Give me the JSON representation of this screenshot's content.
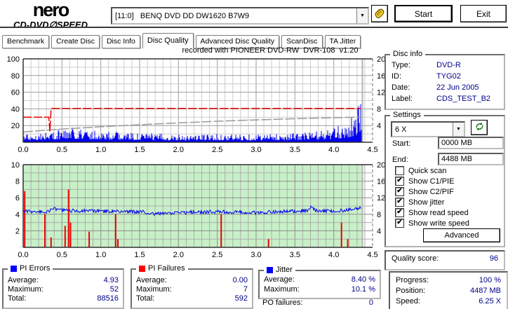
{
  "window": {
    "logo_title": "nero",
    "logo_subtitle": "CD-DVD∅SPEED",
    "drive_selector": "[11:0]   BENQ DVD DD DW1620 B7W9",
    "start_button": "Start",
    "exit_button": "Exit"
  },
  "tabs": [
    {
      "label": "Benchmark",
      "active": false
    },
    {
      "label": "Create Disc",
      "active": false
    },
    {
      "label": "Disc Info",
      "active": false
    },
    {
      "label": "Disc Quality",
      "active": true
    },
    {
      "label": "Advanced Disc Quality",
      "active": false
    },
    {
      "label": "ScanDisc",
      "active": false
    },
    {
      "label": "TA Jitter",
      "active": false
    }
  ],
  "disc_info": {
    "title": "Disc info",
    "rows": [
      {
        "label": "Type:",
        "value": "DVD-R"
      },
      {
        "label": "ID:",
        "value": "TYG02"
      },
      {
        "label": "Date:",
        "value": "22 Jun 2005"
      },
      {
        "label": "Label:",
        "value": "CDS_TEST_B2"
      }
    ]
  },
  "settings": {
    "title": "Settings",
    "speed_value": "6 X",
    "start_label": "Start:",
    "start_value": "0000 MB",
    "end_label": "End:",
    "end_value": "4488 MB",
    "checkboxes": [
      {
        "label": "Quick scan",
        "checked": false
      },
      {
        "label": "Show C1/PIE",
        "checked": true
      },
      {
        "label": "Show C2/PIF",
        "checked": true
      },
      {
        "label": "Show jitter",
        "checked": true
      },
      {
        "label": "Show read speed",
        "checked": true
      },
      {
        "label": "Show write speed",
        "checked": true
      }
    ],
    "advanced_button": "Advanced"
  },
  "quality_score": {
    "label": "Quality score:",
    "value": "96"
  },
  "stats": {
    "pi_errors": {
      "title": "PI Errors",
      "color": "#0000ff",
      "rows": [
        {
          "label": "Average:",
          "value": "4.93"
        },
        {
          "label": "Maximum:",
          "value": "52"
        },
        {
          "label": "Total:",
          "value": "88516"
        }
      ]
    },
    "pi_failures": {
      "title": "PI Failures",
      "color": "#ff0000",
      "rows": [
        {
          "label": "Average:",
          "value": "0.00"
        },
        {
          "label": "Maximum:",
          "value": "7"
        },
        {
          "label": "Total:",
          "value": "592"
        }
      ]
    },
    "jitter": {
      "title": "Jitter",
      "color": "#0000ff",
      "rows": [
        {
          "label": "Average:",
          "value": "8.40 %"
        },
        {
          "label": "Maximum:",
          "value": "10.1 %"
        }
      ],
      "po_label": "PO failures:",
      "po_value": "0"
    },
    "progress": {
      "rows": [
        {
          "label": "Progress:",
          "value": "100 %"
        },
        {
          "label": "Position:",
          "value": "4487 MB"
        },
        {
          "label": "Speed:",
          "value": "6.25 X"
        }
      ]
    }
  },
  "chart_data": [
    {
      "type": "area",
      "title": "recorded with PIONEER DVD-RW  DVR-108  v1.20",
      "x_range": [
        0,
        4.5
      ],
      "x_ticks": [
        "0.0",
        "0.5",
        "1.0",
        "1.5",
        "2.0",
        "2.5",
        "3.0",
        "3.5",
        "4.0",
        "4.5"
      ],
      "y_left": {
        "range": [
          0,
          100
        ],
        "ticks": [
          20,
          40,
          60,
          80,
          100
        ],
        "minor_step": 10,
        "major_every": 20
      },
      "y_right": {
        "range": [
          0,
          20
        ],
        "ticks": [
          4,
          8,
          12,
          16,
          20
        ]
      },
      "data_end_x": 4.36,
      "grid": {
        "minor": "#cccccc",
        "major": "#9e9e9e"
      },
      "series": [
        {
          "name": "PI Errors",
          "render": "noise-bars",
          "color": "#0000ee",
          "seed": 987654,
          "envelope": [
            [
              0,
              10
            ],
            [
              0.2,
              12
            ],
            [
              0.35,
              13
            ],
            [
              0.5,
              17
            ],
            [
              0.7,
              18
            ],
            [
              0.9,
              15
            ],
            [
              1.1,
              14
            ],
            [
              1.3,
              12
            ],
            [
              1.6,
              11
            ],
            [
              2.0,
              10
            ],
            [
              2.4,
              10
            ],
            [
              2.8,
              10
            ],
            [
              3.2,
              10
            ],
            [
              3.5,
              11
            ],
            [
              3.8,
              14
            ],
            [
              4.0,
              17
            ],
            [
              4.1,
              21
            ],
            [
              4.2,
              28
            ],
            [
              4.28,
              36
            ],
            [
              4.33,
              48
            ],
            [
              4.36,
              52
            ]
          ]
        },
        {
          "name": "Write speed",
          "render": "line",
          "color": "#9a9a9a",
          "dash": "14 3",
          "units": "left-axis (x5 = speed X)",
          "points": [
            [
              0,
              12.4
            ],
            [
              0.5,
              15.8
            ],
            [
              1.0,
              18.6
            ],
            [
              1.5,
              21.0
            ],
            [
              2.0,
              23.2
            ],
            [
              2.5,
              25.2
            ],
            [
              3.0,
              26.8
            ],
            [
              3.5,
              28.2
            ],
            [
              4.0,
              29.4
            ],
            [
              4.36,
              30.2
            ]
          ]
        },
        {
          "name": "Read speed",
          "render": "line",
          "color": "#e80000",
          "dash": "12 3",
          "units": "left-axis (x5 = speed X)",
          "points": [
            [
              0,
              30
            ],
            [
              0.33,
              30
            ],
            [
              0.345,
              13
            ],
            [
              0.36,
              40.5
            ],
            [
              4.35,
              40.5
            ]
          ]
        }
      ]
    },
    {
      "type": "line",
      "title": "",
      "x_range": [
        0,
        4.5
      ],
      "x_ticks": [
        "0.0",
        "0.5",
        "1.0",
        "1.5",
        "2.0",
        "2.5",
        "3.0",
        "3.5",
        "4.0",
        "4.5"
      ],
      "y_left": {
        "range": [
          0,
          10
        ],
        "ticks": [
          2,
          4,
          6,
          8,
          10
        ],
        "minor_step": 1,
        "major_every": 2
      },
      "y_right": {
        "range": [
          0,
          20
        ],
        "ticks": [
          4,
          8,
          12,
          16,
          20
        ]
      },
      "data_end_x": 4.36,
      "bg_color": "#c8f0c8",
      "grid": {
        "minor": "#adadad",
        "major": "#8d8d8d"
      },
      "series": [
        {
          "name": "PI Failures",
          "render": "bars",
          "color": "#ee0000",
          "points": [
            [
              0.02,
              6.8
            ],
            [
              0.28,
              4
            ],
            [
              0.36,
              1.2
            ],
            [
              0.54,
              2.6
            ],
            [
              0.585,
              7
            ],
            [
              0.61,
              3
            ],
            [
              0.85,
              1.9
            ],
            [
              1.19,
              4
            ],
            [
              1.22,
              1
            ],
            [
              2.55,
              4
            ],
            [
              3.16,
              1
            ],
            [
              4.1,
              3
            ],
            [
              4.18,
              1
            ]
          ]
        },
        {
          "name": "Jitter",
          "render": "noise-line",
          "color": "#0000ee",
          "seed": 424242,
          "noise": 0.21,
          "baseline": [
            [
              0,
              4.35
            ],
            [
              0.3,
              4.3
            ],
            [
              0.4,
              4.65
            ],
            [
              0.55,
              4.45
            ],
            [
              0.8,
              4.4
            ],
            [
              1.2,
              4.35
            ],
            [
              1.55,
              4.3
            ],
            [
              1.7,
              4.05
            ],
            [
              1.9,
              4.1
            ],
            [
              2.2,
              4.25
            ],
            [
              2.6,
              4.3
            ],
            [
              3.0,
              4.2
            ],
            [
              3.3,
              4.3
            ],
            [
              3.68,
              4.45
            ],
            [
              3.72,
              5.0
            ],
            [
              3.76,
              4.4
            ],
            [
              4.0,
              4.4
            ],
            [
              4.2,
              4.5
            ],
            [
              4.36,
              4.8
            ]
          ]
        }
      ]
    }
  ]
}
